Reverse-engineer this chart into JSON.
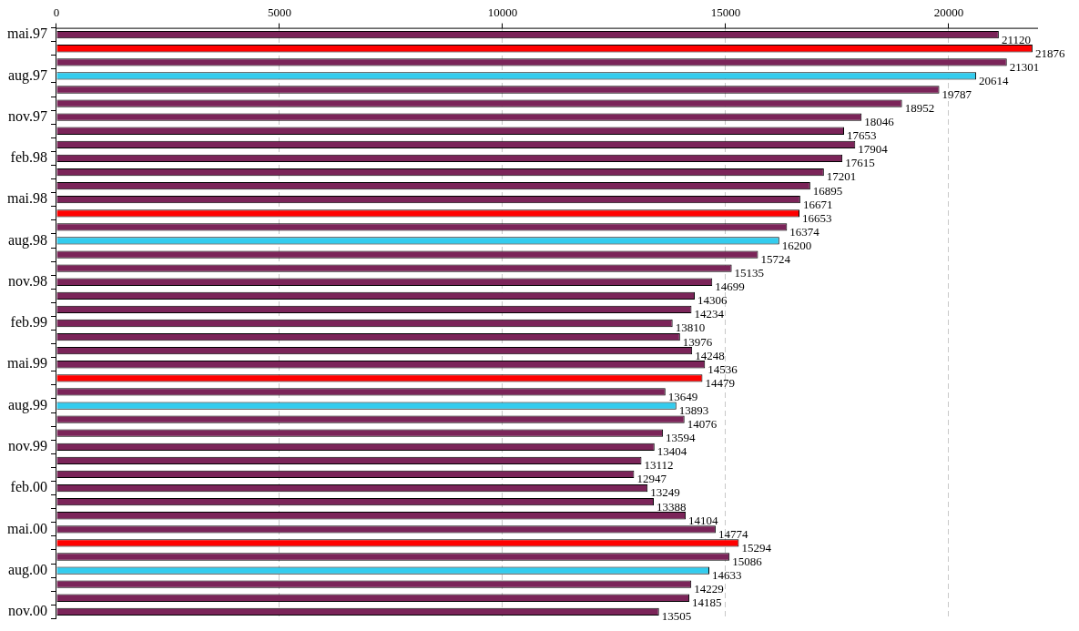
{
  "chart_data": {
    "type": "bar",
    "orientation": "horizontal",
    "categories": [
      "mai.97",
      null,
      null,
      "aug.97",
      null,
      null,
      "nov.97",
      null,
      null,
      "feb.98",
      null,
      null,
      "mai.98",
      null,
      null,
      "aug.98",
      null,
      null,
      "nov.98",
      null,
      null,
      "feb.99",
      null,
      null,
      "mai.99",
      null,
      null,
      "aug.99",
      null,
      null,
      "nov.99",
      null,
      null,
      "feb.00",
      null,
      null,
      "mai.00",
      null,
      null,
      "aug.00",
      null,
      null,
      "nov.00"
    ],
    "values": [
      21120,
      21876,
      21301,
      20614,
      19787,
      18952,
      18046,
      17653,
      17904,
      17615,
      17201,
      16895,
      16671,
      16653,
      16374,
      16200,
      15724,
      15135,
      14699,
      14306,
      14234,
      13810,
      13976,
      14248,
      14536,
      14479,
      13649,
      13893,
      14076,
      13594,
      13404,
      13112,
      12947,
      13249,
      13388,
      14104,
      14774,
      15294,
      15086,
      14633,
      14229,
      14185,
      13505
    ],
    "colors": [
      "#7b2459",
      "#ff0000",
      "#7b2459",
      "#33ccee",
      "#7b2459",
      "#7b2459",
      "#7b2459",
      "#7b2459",
      "#7b2459",
      "#7b2459",
      "#7b2459",
      "#7b2459",
      "#7b2459",
      "#ff0000",
      "#7b2459",
      "#33ccee",
      "#7b2459",
      "#7b2459",
      "#7b2459",
      "#7b2459",
      "#7b2459",
      "#7b2459",
      "#7b2459",
      "#7b2459",
      "#7b2459",
      "#ff0000",
      "#7b2459",
      "#33ccee",
      "#7b2459",
      "#7b2459",
      "#7b2459",
      "#7b2459",
      "#7b2459",
      "#7b2459",
      "#7b2459",
      "#7b2459",
      "#7b2459",
      "#ff0000",
      "#7b2459",
      "#33ccee",
      "#7b2459",
      "#7b2459",
      "#7b2459"
    ],
    "xlim": [
      0,
      22000
    ],
    "xticks": [
      0,
      5000,
      10000,
      15000,
      20000
    ],
    "grid": "x",
    "data_labels": true,
    "legend": false
  }
}
